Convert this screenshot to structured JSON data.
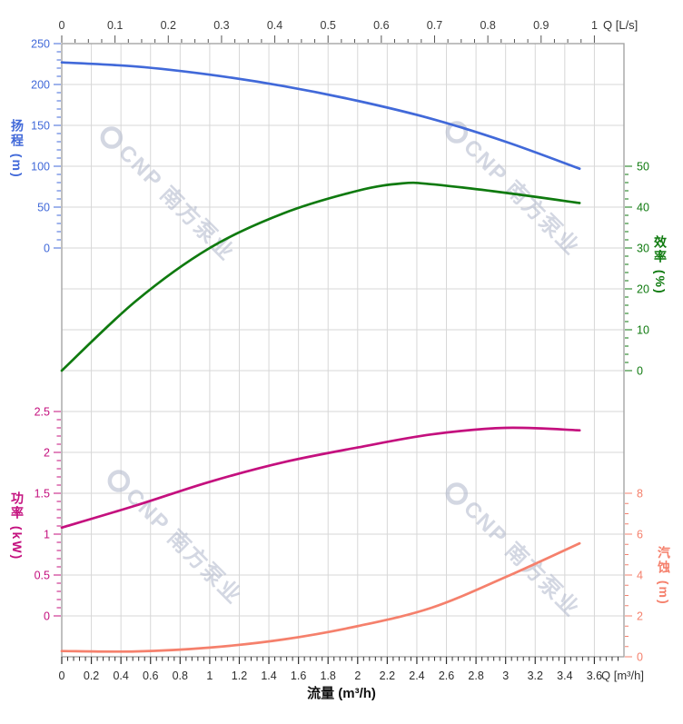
{
  "watermark": {
    "text": "CNP 南方泵业",
    "logo": "cnp-ring-logo",
    "color": "rgba(174,183,202,0.55)"
  },
  "labels": {
    "flow_axis_title": "流量 (m³/h)",
    "top_axis_unit": "Q [L/s]",
    "bottom_axis_unit": "Q [m³/h]"
  },
  "chart_data": {
    "type": "line",
    "title": "",
    "grid": "on",
    "x_bottom": {
      "unit_label": "Q [m³/h]",
      "title": "流量 (m³/h)",
      "min": 0,
      "max": 3.8,
      "major_ticks": [
        0,
        0.2,
        0.4,
        0.6,
        0.8,
        1,
        1.2,
        1.4,
        1.6,
        1.8,
        2,
        2.2,
        2.4,
        2.6,
        2.8,
        3,
        3.2,
        3.4,
        3.6
      ],
      "minor_step": 0.04
    },
    "x_top": {
      "unit_label": "Q [L/s]",
      "min": 0,
      "max": 1.056,
      "major_ticks": [
        0,
        0.1,
        0.2,
        0.3,
        0.4,
        0.5,
        0.6,
        0.7,
        0.8,
        0.9,
        1
      ],
      "minor_step": 0.025,
      "m3h_per_unit": 3.6
    },
    "axes": {
      "head": {
        "title": "扬程 (m)",
        "color": "#4169d9",
        "side": "left",
        "min": 0,
        "max": 250,
        "major_ticks": [
          0,
          50,
          100,
          150,
          200,
          250
        ],
        "minor_step": 10
      },
      "eff": {
        "title": "效率 (%)",
        "color": "#0f7a0f",
        "side": "right",
        "min": 0,
        "max": 50,
        "major_ticks": [
          0,
          10,
          20,
          30,
          40,
          50
        ],
        "minor_step": 2
      },
      "power": {
        "title": "功率 (kW)",
        "color": "#c4107e",
        "side": "left",
        "min": 0,
        "max": 2.5,
        "major_ticks": [
          0,
          0.5,
          1,
          1.5,
          2,
          2.5
        ],
        "minor_step": 0.1
      },
      "npsh": {
        "title": "汽蚀 (m)",
        "color": "#f5806c",
        "side": "right",
        "min": 0,
        "max": 8,
        "major_ticks": [
          0,
          2,
          4,
          6,
          8
        ],
        "minor_step": 0.5
      }
    },
    "series": [
      {
        "name": "head-curve",
        "label": "扬程",
        "axis": "head",
        "color": "#4169d9",
        "x": [
          0,
          0.5,
          1,
          1.5,
          2,
          2.5,
          3,
          3.5
        ],
        "y": [
          227,
          222,
          212,
          198,
          180,
          158,
          130,
          97
        ]
      },
      {
        "name": "eff-curve",
        "label": "效率",
        "axis": "eff",
        "color": "#0f7a0f",
        "x": [
          0,
          0.5,
          1,
          1.5,
          2,
          2.3,
          2.5,
          3,
          3.5
        ],
        "y": [
          0,
          17,
          30,
          38.5,
          44,
          45.8,
          45.6,
          43.5,
          41
        ]
      },
      {
        "name": "power-curve",
        "label": "功率",
        "axis": "power",
        "color": "#c4107e",
        "x": [
          0,
          0.5,
          1,
          1.5,
          2,
          2.5,
          3,
          3.5
        ],
        "y": [
          1.08,
          1.35,
          1.64,
          1.88,
          2.06,
          2.22,
          2.3,
          2.27
        ]
      },
      {
        "name": "npsh-curve",
        "label": "汽蚀",
        "axis": "npsh",
        "color": "#f5806c",
        "x": [
          0,
          0.5,
          1,
          1.5,
          2,
          2.5,
          3,
          3.5
        ],
        "y": [
          0.28,
          0.26,
          0.45,
          0.85,
          1.5,
          2.4,
          3.9,
          5.55
        ]
      }
    ]
  }
}
